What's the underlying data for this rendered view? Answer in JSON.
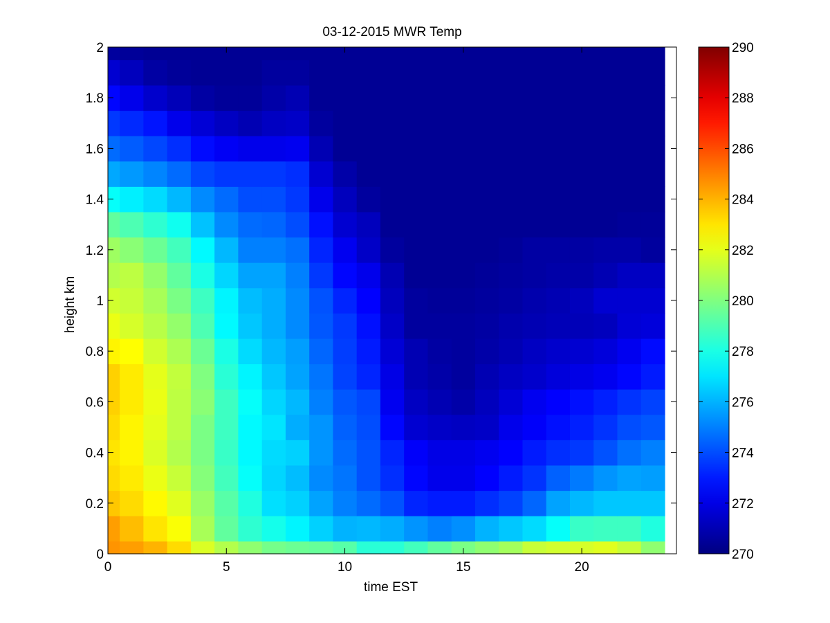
{
  "chart_data": {
    "type": "heatmap",
    "title": "03-12-2015 MWR Temp",
    "xlabel": "time EST",
    "ylabel": "height km",
    "xlim": [
      0,
      23.5
    ],
    "ylim": [
      0,
      2
    ],
    "x_ticks": [
      0,
      5,
      10,
      15,
      20
    ],
    "y_ticks": [
      0,
      0.2,
      0.4,
      0.6,
      0.8,
      1,
      1.2,
      1.4,
      1.6,
      1.8,
      2
    ],
    "y_tick_labels": [
      "0",
      "0.2",
      "0.4",
      "0.6",
      "0.8",
      "1",
      "1.2",
      "1.4",
      "1.6",
      "1.8",
      "2"
    ],
    "colorbar": {
      "min": 270,
      "max": 290,
      "ticks": [
        270,
        272,
        274,
        276,
        278,
        280,
        282,
        284,
        286,
        288,
        290
      ],
      "colormap": "jet"
    },
    "x_edges": [
      0,
      0.5,
      1.5,
      2.5,
      3.5,
      4.5,
      5.5,
      6.5,
      7.5,
      8.5,
      9.5,
      10.5,
      11.5,
      12.5,
      13.5,
      14.5,
      15.5,
      16.5,
      17.5,
      18.5,
      19.5,
      20.5,
      21.5,
      22.5,
      23.5
    ],
    "y_edges": [
      0,
      0.05,
      0.15,
      0.25,
      0.35,
      0.45,
      0.55,
      0.65,
      0.75,
      0.85,
      0.95,
      1.05,
      1.15,
      1.25,
      1.35,
      1.45,
      1.55,
      1.65,
      1.75,
      1.85,
      1.95,
      2.0
    ],
    "z": [
      [
        284.6,
        284.4,
        284.0,
        283.2,
        281.8,
        281.0,
        280.3,
        279.8,
        279.6,
        279.5,
        279.2,
        278.3,
        278.3,
        278.8,
        279.4,
        279.9,
        280.3,
        280.7,
        281.4,
        281.6,
        281.7,
        281.9,
        281.4,
        280.3
      ],
      [
        284.4,
        283.8,
        283.0,
        282.4,
        280.8,
        279.4,
        278.4,
        277.9,
        277.3,
        276.6,
        276.0,
        276.1,
        275.9,
        275.4,
        275.0,
        275.3,
        276.0,
        276.4,
        276.8,
        277.6,
        278.6,
        278.7,
        278.7,
        278.1
      ],
      [
        283.6,
        283.2,
        282.6,
        281.9,
        280.5,
        279.2,
        278.1,
        276.9,
        276.6,
        275.7,
        275.0,
        274.6,
        274.1,
        273.2,
        273.0,
        273.0,
        273.4,
        273.8,
        274.5,
        275.7,
        276.1,
        276.4,
        276.4,
        276.4
      ],
      [
        283.2,
        282.9,
        282.1,
        281.4,
        280.1,
        278.8,
        277.6,
        276.7,
        276.2,
        275.2,
        274.8,
        274.1,
        273.4,
        272.6,
        272.1,
        272.1,
        272.5,
        273.0,
        273.5,
        274.4,
        274.9,
        275.4,
        275.7,
        275.6
      ],
      [
        283.0,
        282.7,
        281.8,
        281.0,
        279.9,
        278.6,
        277.4,
        276.8,
        276.6,
        275.4,
        274.6,
        274.1,
        273.2,
        272.4,
        272.0,
        272.0,
        272.2,
        272.5,
        273.0,
        273.4,
        273.6,
        274.1,
        274.7,
        275.0
      ],
      [
        283.2,
        282.7,
        282.0,
        281.2,
        279.9,
        278.7,
        277.4,
        277.0,
        275.9,
        275.4,
        274.4,
        274.0,
        272.6,
        271.6,
        271.4,
        271.3,
        271.4,
        272.1,
        272.4,
        272.8,
        273.1,
        273.5,
        274.0,
        274.2
      ],
      [
        283.4,
        282.9,
        282.1,
        281.2,
        280.2,
        278.7,
        277.6,
        276.7,
        276.1,
        275.0,
        274.2,
        273.9,
        272.2,
        271.3,
        271.0,
        270.8,
        271.2,
        271.7,
        272.2,
        272.5,
        272.8,
        273.1,
        273.5,
        273.8
      ],
      [
        283.4,
        282.9,
        282.0,
        281.3,
        280.0,
        278.3,
        277.3,
        276.4,
        275.7,
        274.8,
        273.8,
        273.2,
        272.0,
        271.0,
        270.8,
        270.6,
        271.0,
        271.3,
        271.5,
        271.8,
        272.0,
        272.2,
        272.6,
        273.0
      ],
      [
        282.7,
        282.5,
        281.6,
        280.9,
        279.6,
        278.0,
        276.8,
        276.1,
        275.6,
        274.5,
        273.7,
        273.0,
        271.7,
        271.0,
        270.7,
        270.6,
        270.8,
        271.0,
        271.3,
        271.5,
        271.6,
        271.8,
        272.2,
        272.7
      ],
      [
        282.1,
        281.7,
        281.1,
        280.4,
        279.0,
        277.4,
        276.4,
        275.9,
        275.2,
        274.2,
        273.6,
        272.8,
        271.4,
        270.6,
        270.6,
        270.6,
        270.7,
        270.9,
        271.0,
        271.1,
        271.1,
        271.2,
        271.7,
        271.8
      ],
      [
        281.6,
        281.4,
        280.8,
        279.9,
        278.7,
        277.3,
        276.2,
        275.9,
        275.2,
        274.1,
        273.2,
        272.5,
        271.2,
        270.6,
        270.5,
        270.5,
        270.6,
        270.7,
        270.9,
        271.0,
        271.2,
        271.6,
        271.6,
        271.6
      ],
      [
        281.0,
        281.2,
        280.4,
        279.4,
        278.0,
        276.7,
        275.7,
        275.7,
        275.0,
        273.6,
        272.6,
        272.1,
        271.0,
        270.4,
        270.4,
        270.4,
        270.5,
        270.6,
        270.7,
        270.8,
        270.8,
        271.0,
        271.3,
        271.3
      ],
      [
        280.6,
        280.2,
        279.6,
        278.8,
        277.4,
        276.1,
        275.0,
        275.0,
        274.7,
        273.2,
        272.2,
        271.4,
        270.6,
        270.4,
        270.4,
        270.4,
        270.4,
        270.5,
        270.7,
        270.7,
        270.7,
        270.8,
        270.8,
        270.6
      ],
      [
        279.4,
        279.0,
        278.4,
        277.8,
        276.3,
        275.2,
        274.6,
        274.5,
        274.0,
        272.8,
        271.6,
        271.2,
        270.4,
        270.4,
        270.4,
        270.4,
        270.4,
        270.4,
        270.4,
        270.4,
        270.4,
        270.4,
        270.5,
        270.5
      ],
      [
        277.6,
        277.2,
        276.8,
        276.1,
        275.2,
        274.6,
        274.0,
        274.0,
        273.6,
        272.1,
        271.2,
        270.6,
        270.4,
        270.4,
        270.4,
        270.4,
        270.4,
        270.4,
        270.4,
        270.4,
        270.4,
        270.4,
        270.4,
        270.4
      ],
      [
        275.8,
        275.5,
        275.1,
        274.6,
        273.9,
        273.6,
        273.6,
        273.6,
        273.4,
        271.6,
        270.8,
        270.4,
        270.4,
        270.4,
        270.4,
        270.4,
        270.4,
        270.4,
        270.4,
        270.4,
        270.4,
        270.4,
        270.4,
        270.4
      ],
      [
        274.6,
        274.3,
        273.9,
        273.4,
        272.7,
        272.3,
        272.1,
        272.1,
        272.2,
        271.0,
        270.4,
        270.4,
        270.4,
        270.4,
        270.4,
        270.4,
        270.4,
        270.4,
        270.4,
        270.4,
        270.4,
        270.4,
        270.4,
        270.4
      ],
      [
        273.6,
        273.3,
        272.9,
        272.1,
        271.7,
        271.3,
        271.0,
        271.3,
        271.4,
        270.6,
        270.4,
        270.4,
        270.4,
        270.4,
        270.4,
        270.4,
        270.4,
        270.4,
        270.4,
        270.4,
        270.4,
        270.4,
        270.4,
        270.4
      ],
      [
        272.6,
        272.1,
        271.5,
        271.1,
        270.7,
        270.5,
        270.5,
        270.8,
        271.0,
        270.4,
        270.4,
        270.4,
        270.4,
        270.4,
        270.4,
        270.4,
        270.4,
        270.4,
        270.4,
        270.4,
        270.4,
        270.4,
        270.4,
        270.4
      ],
      [
        271.6,
        271.2,
        270.7,
        270.5,
        270.4,
        270.4,
        270.4,
        270.6,
        270.6,
        270.4,
        270.4,
        270.4,
        270.4,
        270.4,
        270.4,
        270.4,
        270.4,
        270.4,
        270.4,
        270.4,
        270.4,
        270.4,
        270.4,
        270.4
      ],
      [
        270.6,
        270.5,
        270.4,
        270.4,
        270.4,
        270.4,
        270.4,
        270.4,
        270.4,
        270.4,
        270.4,
        270.4,
        270.4,
        270.4,
        270.4,
        270.4,
        270.4,
        270.4,
        270.4,
        270.4,
        270.4,
        270.4,
        270.4,
        270.4
      ]
    ]
  }
}
